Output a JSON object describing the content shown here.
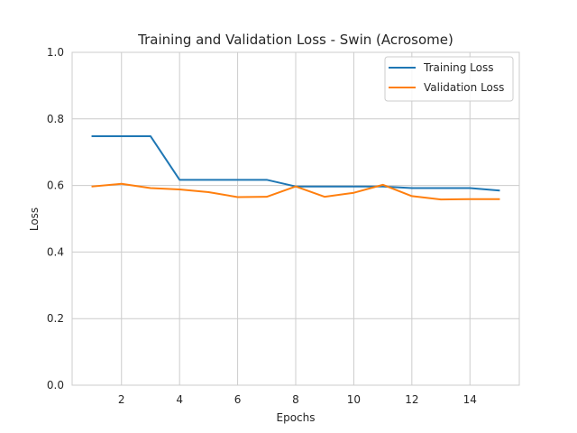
{
  "chart_data": {
    "type": "line",
    "title": "Training and Validation Loss - Swin (Acrosome)",
    "xlabel": "Epochs",
    "ylabel": "Loss",
    "xlim": [
      0.3,
      15.7
    ],
    "ylim": [
      0.0,
      1.0
    ],
    "x_ticks": [
      2,
      4,
      6,
      8,
      10,
      12,
      14
    ],
    "y_ticks": [
      0.0,
      0.2,
      0.4,
      0.6,
      0.8,
      1.0
    ],
    "grid": true,
    "legend_position": "top-right",
    "x": [
      1,
      2,
      3,
      4,
      5,
      6,
      7,
      8,
      9,
      10,
      11,
      12,
      13,
      14,
      15
    ],
    "series": [
      {
        "name": "Training Loss",
        "color": "#1f77b4",
        "values": [
          0.748,
          0.748,
          0.748,
          0.617,
          0.617,
          0.617,
          0.617,
          0.597,
          0.597,
          0.597,
          0.597,
          0.592,
          0.592,
          0.592,
          0.585
        ]
      },
      {
        "name": "Validation Loss",
        "color": "#ff7f0e",
        "values": [
          0.597,
          0.605,
          0.592,
          0.588,
          0.58,
          0.565,
          0.566,
          0.597,
          0.566,
          0.578,
          0.602,
          0.568,
          0.558,
          0.559,
          0.559
        ]
      }
    ]
  }
}
